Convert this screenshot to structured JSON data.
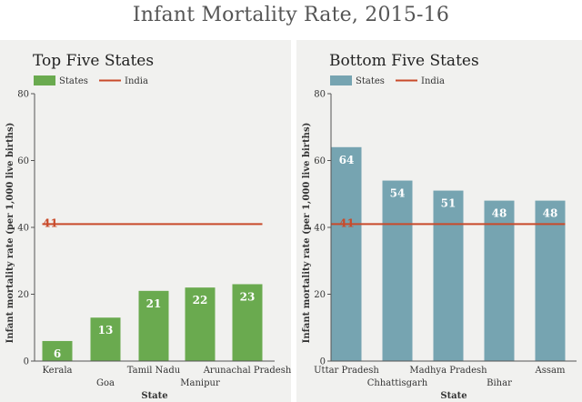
{
  "title": "Infant Mortality Rate, 2015-16",
  "colors": {
    "background": "#ffffff",
    "panel": "#f1f1ef",
    "top_bar": "#6aaa4f",
    "bottom_bar": "#76a4b1",
    "india_line": "#c94a2a",
    "text": "#333333"
  },
  "chart_data": [
    {
      "type": "bar",
      "title": "Top Five States",
      "xlabel": "State",
      "ylabel": "Infant mortality rate (per 1,000 live births)",
      "ylim": [
        0,
        80
      ],
      "yticks": [
        0,
        20,
        40,
        60,
        80
      ],
      "grid": false,
      "legend": {
        "states_label": "States",
        "india_label": "India",
        "placement": "top-left"
      },
      "categories": [
        "Kerala",
        "Goa",
        "Tamil Nadu",
        "Manipur",
        "Arunachal Pradesh"
      ],
      "values": [
        6,
        13,
        21,
        22,
        23
      ],
      "reference_line": {
        "name": "India",
        "value": 41,
        "label": "41"
      }
    },
    {
      "type": "bar",
      "title": "Bottom Five States",
      "xlabel": "State",
      "ylabel": "Infant mortality rate (per 1,000 live births)",
      "ylim": [
        0,
        80
      ],
      "yticks": [
        0,
        20,
        40,
        60,
        80
      ],
      "grid": false,
      "legend": {
        "states_label": "States",
        "india_label": "India",
        "placement": "top-left"
      },
      "categories": [
        "Uttar Pradesh",
        "Chhattisgarh",
        "Madhya Pradesh",
        "Bihar",
        "Assam"
      ],
      "values": [
        64,
        54,
        51,
        48,
        48
      ],
      "reference_line": {
        "name": "India",
        "value": 41,
        "label": "41"
      }
    }
  ]
}
